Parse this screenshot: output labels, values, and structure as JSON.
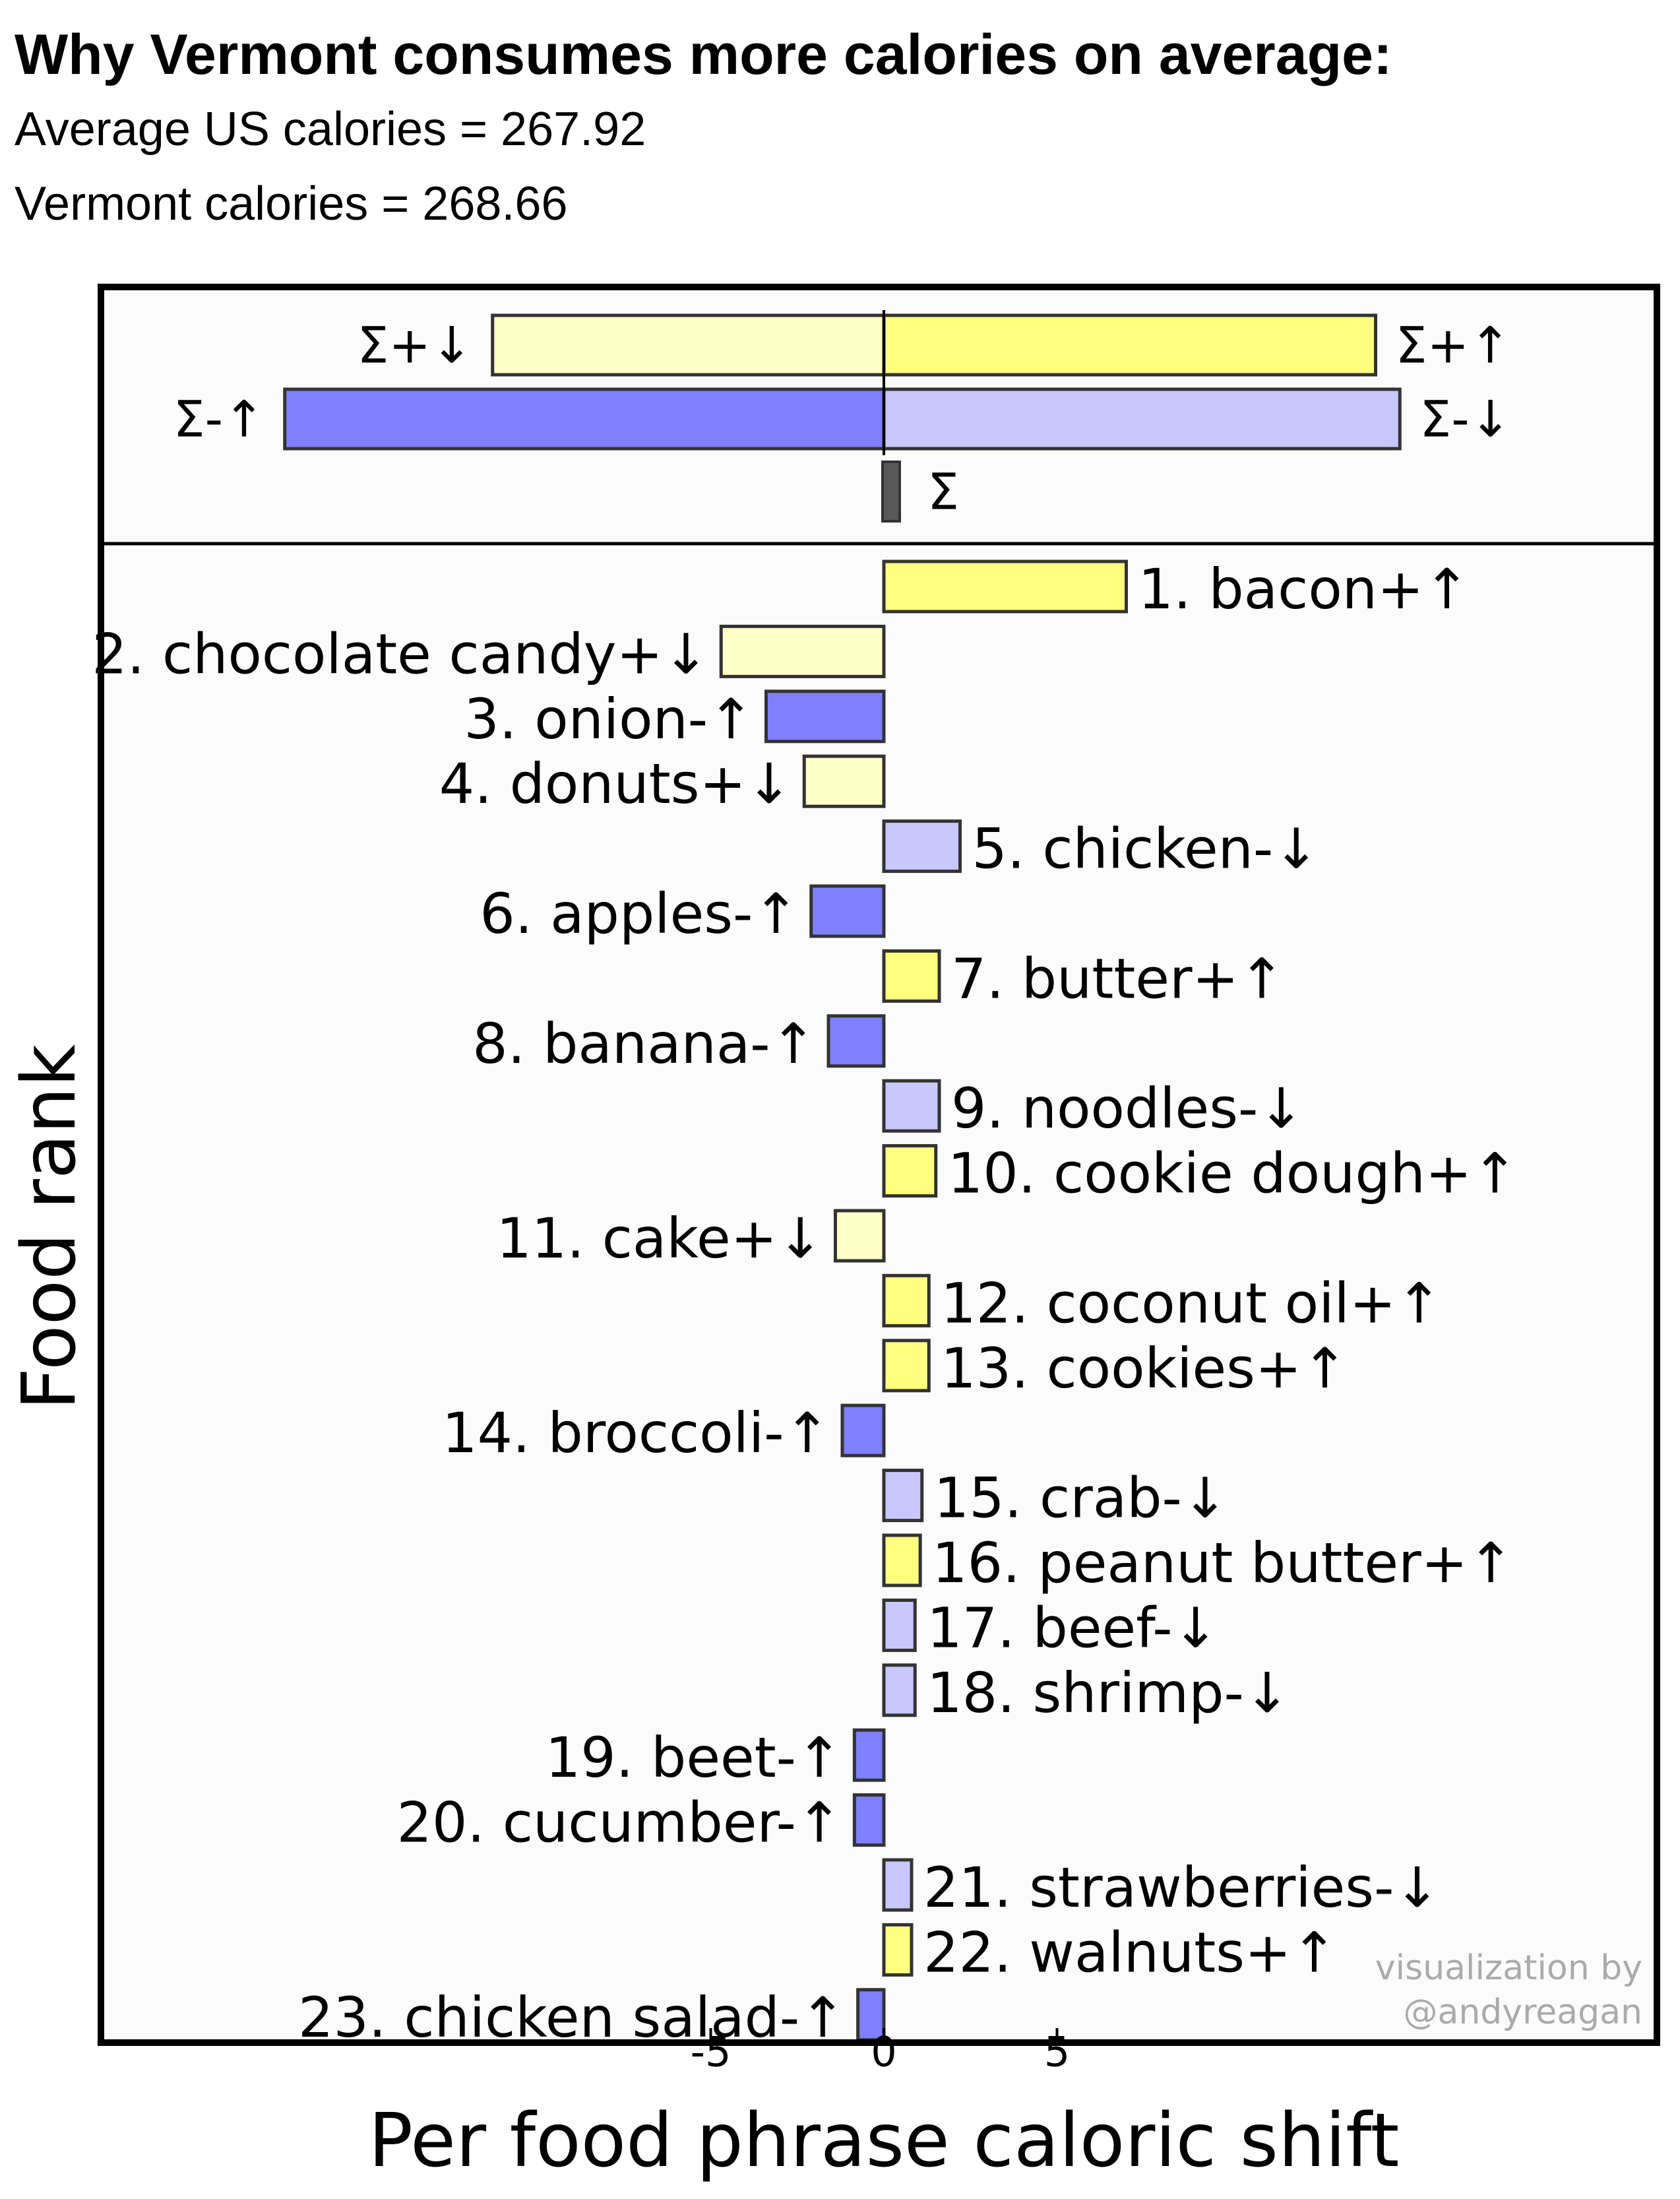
{
  "header": {
    "title": "Why Vermont consumes more calories on average:",
    "subtitle_us": "Average US calories = 267.92",
    "subtitle_vt": "Vermont calories = 268.66"
  },
  "credit": {
    "line1": "visualization by",
    "line2": "@andyreagan"
  },
  "colors": {
    "plus_up": "#ffff80",
    "plus_down": "#ffffc8",
    "minus_up": "#8080ff",
    "minus_down": "#c8c8ff",
    "sum": "#595959",
    "panel_bg": "#fbfbfb"
  },
  "chart_data": {
    "type": "bar",
    "orientation": "horizontal",
    "xlabel": "Per food phrase caloric shift",
    "ylabel": "Food rank",
    "xlim": [
      -10,
      20
    ],
    "xticks": [
      -5,
      0,
      5
    ],
    "summary": [
      {
        "label": "Σ+↓",
        "value": -11.3,
        "kind": "plus_down"
      },
      {
        "label": "Σ+↑",
        "value": 14.2,
        "kind": "plus_up"
      },
      {
        "label": "Σ-↑",
        "value": -17.3,
        "kind": "minus_up"
      },
      {
        "label": "Σ-↓",
        "value": 14.9,
        "kind": "minus_down"
      },
      {
        "label": "Σ",
        "value": 0.5,
        "kind": "sum"
      }
    ],
    "foods": [
      {
        "label": "1. bacon+↑",
        "value": 7.0,
        "kind": "plus_up"
      },
      {
        "label": "2. chocolate candy+↓",
        "value": -4.7,
        "kind": "plus_down"
      },
      {
        "label": "3. onion-↑",
        "value": -3.4,
        "kind": "minus_up"
      },
      {
        "label": "4. donuts+↓",
        "value": -2.3,
        "kind": "plus_down"
      },
      {
        "label": "5. chicken-↓",
        "value": 2.2,
        "kind": "minus_down"
      },
      {
        "label": "6. apples-↑",
        "value": -2.1,
        "kind": "minus_up"
      },
      {
        "label": "7. butter+↑",
        "value": 1.6,
        "kind": "plus_up"
      },
      {
        "label": "8. banana-↑",
        "value": -1.6,
        "kind": "minus_up"
      },
      {
        "label": "9. noodles-↓",
        "value": 1.6,
        "kind": "minus_down"
      },
      {
        "label": "10. cookie dough+↑",
        "value": 1.5,
        "kind": "plus_up"
      },
      {
        "label": "11. cake+↓",
        "value": -1.4,
        "kind": "plus_down"
      },
      {
        "label": "12. coconut oil+↑",
        "value": 1.3,
        "kind": "plus_up"
      },
      {
        "label": "13. cookies+↑",
        "value": 1.3,
        "kind": "plus_up"
      },
      {
        "label": "14. broccoli-↑",
        "value": -1.2,
        "kind": "minus_up"
      },
      {
        "label": "15. crab-↓",
        "value": 1.1,
        "kind": "minus_down"
      },
      {
        "label": "16. peanut butter+↑",
        "value": 1.05,
        "kind": "plus_up"
      },
      {
        "label": "17. beef-↓",
        "value": 0.9,
        "kind": "minus_down"
      },
      {
        "label": "18. shrimp-↓",
        "value": 0.9,
        "kind": "minus_down"
      },
      {
        "label": "19. beet-↑",
        "value": -0.85,
        "kind": "minus_up"
      },
      {
        "label": "20. cucumber-↑",
        "value": -0.85,
        "kind": "minus_up"
      },
      {
        "label": "21. strawberries-↓",
        "value": 0.8,
        "kind": "minus_down"
      },
      {
        "label": "22. walnuts+↑",
        "value": 0.8,
        "kind": "plus_up"
      },
      {
        "label": "23. chicken salad-↑",
        "value": -0.75,
        "kind": "minus_up"
      }
    ]
  }
}
